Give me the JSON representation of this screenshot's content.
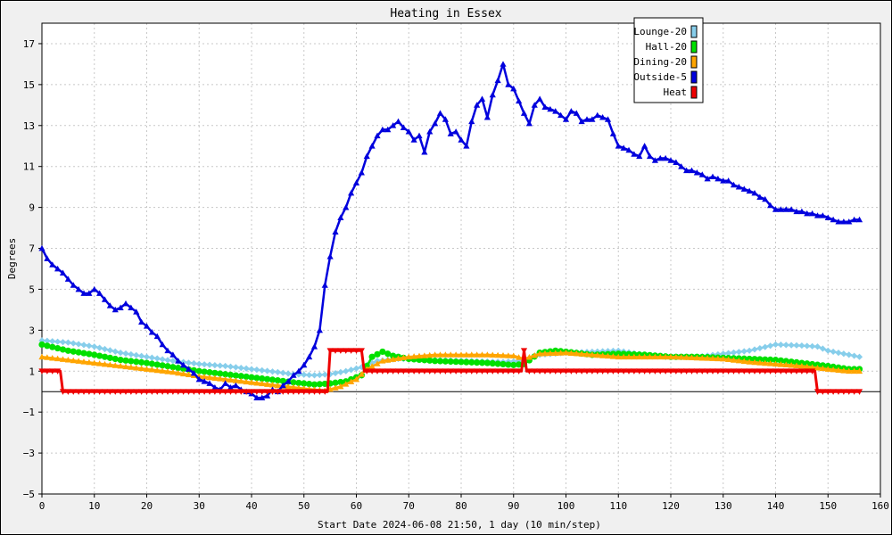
{
  "chart_data": {
    "type": "line",
    "title": "Heating in Essex",
    "xlabel": "Start Date 2024-06-08 21:50, 1 day (10 min/step)",
    "ylabel": "Degrees",
    "xlim": [
      0,
      160
    ],
    "ylim": [
      -5,
      18
    ],
    "xticks": [
      0,
      10,
      20,
      30,
      40,
      50,
      60,
      70,
      80,
      90,
      100,
      110,
      120,
      130,
      140,
      150,
      160
    ],
    "xtick_labels": [
      "0",
      "10",
      "20",
      "30",
      "40",
      "50",
      "60",
      "70",
      "80",
      "90",
      "100",
      "110",
      "120",
      "130",
      "140",
      "150",
      "160"
    ],
    "yticks": [
      -5,
      -3,
      -1,
      1,
      3,
      5,
      7,
      9,
      11,
      13,
      15,
      17
    ],
    "ytick_labels": [
      "−5",
      "−3",
      "−1",
      "1",
      "3",
      "5",
      "7",
      "9",
      "11",
      "13",
      "15",
      "17"
    ],
    "grid": true,
    "zero_line": true,
    "legend_position": "top-right",
    "series": [
      {
        "name": "Lounge-20",
        "color": "#87ceeb",
        "marker": "diamond",
        "points": [
          [
            0,
            2.5
          ],
          [
            5,
            2.4
          ],
          [
            10,
            2.2
          ],
          [
            15,
            1.9
          ],
          [
            20,
            1.7
          ],
          [
            25,
            1.5
          ],
          [
            30,
            1.35
          ],
          [
            35,
            1.25
          ],
          [
            40,
            1.1
          ],
          [
            45,
            0.95
          ],
          [
            48,
            0.85
          ],
          [
            52,
            0.8
          ],
          [
            55,
            0.85
          ],
          [
            58,
            1.0
          ],
          [
            61,
            1.2
          ],
          [
            64,
            1.5
          ],
          [
            68,
            1.6
          ],
          [
            75,
            1.55
          ],
          [
            82,
            1.5
          ],
          [
            88,
            1.45
          ],
          [
            92,
            1.5
          ],
          [
            95,
            1.8
          ],
          [
            100,
            1.9
          ],
          [
            105,
            1.95
          ],
          [
            110,
            2.0
          ],
          [
            115,
            1.8
          ],
          [
            120,
            1.7
          ],
          [
            125,
            1.7
          ],
          [
            130,
            1.85
          ],
          [
            135,
            2.0
          ],
          [
            140,
            2.3
          ],
          [
            145,
            2.25
          ],
          [
            148,
            2.2
          ],
          [
            150,
            2.0
          ],
          [
            154,
            1.8
          ],
          [
            156,
            1.7
          ]
        ]
      },
      {
        "name": "Hall-20",
        "color": "#00e000",
        "marker": "circle",
        "points": [
          [
            0,
            2.3
          ],
          [
            5,
            2.0
          ],
          [
            10,
            1.8
          ],
          [
            15,
            1.55
          ],
          [
            20,
            1.4
          ],
          [
            25,
            1.2
          ],
          [
            30,
            1.0
          ],
          [
            35,
            0.85
          ],
          [
            40,
            0.7
          ],
          [
            45,
            0.55
          ],
          [
            48,
            0.45
          ],
          [
            52,
            0.35
          ],
          [
            55,
            0.4
          ],
          [
            58,
            0.5
          ],
          [
            61,
            0.8
          ],
          [
            63,
            1.7
          ],
          [
            65,
            1.95
          ],
          [
            67,
            1.75
          ],
          [
            70,
            1.6
          ],
          [
            75,
            1.5
          ],
          [
            80,
            1.45
          ],
          [
            85,
            1.4
          ],
          [
            90,
            1.3
          ],
          [
            92,
            1.35
          ],
          [
            95,
            1.9
          ],
          [
            98,
            2.0
          ],
          [
            100,
            1.95
          ],
          [
            105,
            1.8
          ],
          [
            110,
            1.85
          ],
          [
            115,
            1.8
          ],
          [
            120,
            1.7
          ],
          [
            125,
            1.7
          ],
          [
            130,
            1.65
          ],
          [
            135,
            1.6
          ],
          [
            140,
            1.55
          ],
          [
            145,
            1.4
          ],
          [
            150,
            1.25
          ],
          [
            154,
            1.1
          ],
          [
            156,
            1.1
          ]
        ]
      },
      {
        "name": "Dining-20",
        "color": "#ffa500",
        "marker": "triangle",
        "points": [
          [
            0,
            1.7
          ],
          [
            5,
            1.55
          ],
          [
            10,
            1.4
          ],
          [
            15,
            1.25
          ],
          [
            20,
            1.1
          ],
          [
            25,
            0.95
          ],
          [
            30,
            0.75
          ],
          [
            35,
            0.6
          ],
          [
            40,
            0.45
          ],
          [
            45,
            0.3
          ],
          [
            50,
            0.15
          ],
          [
            54,
            0.05
          ],
          [
            57,
            0.25
          ],
          [
            60,
            0.6
          ],
          [
            62,
            1.1
          ],
          [
            65,
            1.5
          ],
          [
            70,
            1.7
          ],
          [
            75,
            1.8
          ],
          [
            80,
            1.8
          ],
          [
            85,
            1.8
          ],
          [
            90,
            1.75
          ],
          [
            92,
            1.6
          ],
          [
            95,
            1.85
          ],
          [
            100,
            1.9
          ],
          [
            105,
            1.8
          ],
          [
            110,
            1.7
          ],
          [
            115,
            1.7
          ],
          [
            120,
            1.7
          ],
          [
            125,
            1.65
          ],
          [
            130,
            1.6
          ],
          [
            135,
            1.45
          ],
          [
            140,
            1.35
          ],
          [
            145,
            1.25
          ],
          [
            150,
            1.1
          ],
          [
            154,
            1.0
          ],
          [
            156,
            1.0
          ]
        ]
      },
      {
        "name": "Outside-5",
        "color": "#0000dd",
        "marker": "triangle",
        "points": [
          [
            0,
            7.0
          ],
          [
            1,
            6.5
          ],
          [
            2,
            6.2
          ],
          [
            3,
            6.0
          ],
          [
            4,
            5.8
          ],
          [
            5,
            5.5
          ],
          [
            6,
            5.2
          ],
          [
            7,
            5.0
          ],
          [
            8,
            4.8
          ],
          [
            9,
            4.8
          ],
          [
            10,
            5.0
          ],
          [
            11,
            4.8
          ],
          [
            12,
            4.5
          ],
          [
            13,
            4.2
          ],
          [
            14,
            4.0
          ],
          [
            15,
            4.1
          ],
          [
            16,
            4.3
          ],
          [
            17,
            4.1
          ],
          [
            18,
            3.9
          ],
          [
            19,
            3.4
          ],
          [
            20,
            3.2
          ],
          [
            21,
            2.9
          ],
          [
            22,
            2.7
          ],
          [
            23,
            2.3
          ],
          [
            24,
            2.0
          ],
          [
            25,
            1.8
          ],
          [
            26,
            1.5
          ],
          [
            27,
            1.3
          ],
          [
            28,
            1.1
          ],
          [
            29,
            0.9
          ],
          [
            30,
            0.6
          ],
          [
            31,
            0.5
          ],
          [
            32,
            0.4
          ],
          [
            33,
            0.2
          ],
          [
            34,
            0.1
          ],
          [
            35,
            0.4
          ],
          [
            36,
            0.2
          ],
          [
            37,
            0.3
          ],
          [
            38,
            0.1
          ],
          [
            39,
            0.0
          ],
          [
            40,
            -0.1
          ],
          [
            41,
            -0.3
          ],
          [
            42,
            -0.3
          ],
          [
            43,
            -0.2
          ],
          [
            44,
            0.1
          ],
          [
            45,
            0.0
          ],
          [
            46,
            0.3
          ],
          [
            47,
            0.5
          ],
          [
            48,
            0.8
          ],
          [
            49,
            1.0
          ],
          [
            50,
            1.3
          ],
          [
            51,
            1.7
          ],
          [
            52,
            2.2
          ],
          [
            53,
            3.0
          ],
          [
            54,
            5.2
          ],
          [
            55,
            6.6
          ],
          [
            56,
            7.8
          ],
          [
            57,
            8.5
          ],
          [
            58,
            9.0
          ],
          [
            59,
            9.7
          ],
          [
            60,
            10.2
          ],
          [
            61,
            10.7
          ],
          [
            62,
            11.5
          ],
          [
            63,
            12.0
          ],
          [
            64,
            12.5
          ],
          [
            65,
            12.8
          ],
          [
            66,
            12.8
          ],
          [
            67,
            13.0
          ],
          [
            68,
            13.2
          ],
          [
            69,
            12.9
          ],
          [
            70,
            12.7
          ],
          [
            71,
            12.3
          ],
          [
            72,
            12.5
          ],
          [
            73,
            11.7
          ],
          [
            74,
            12.7
          ],
          [
            75,
            13.1
          ],
          [
            76,
            13.6
          ],
          [
            77,
            13.3
          ],
          [
            78,
            12.6
          ],
          [
            79,
            12.7
          ],
          [
            80,
            12.3
          ],
          [
            81,
            12.0
          ],
          [
            82,
            13.2
          ],
          [
            83,
            14.0
          ],
          [
            84,
            14.3
          ],
          [
            85,
            13.4
          ],
          [
            86,
            14.5
          ],
          [
            87,
            15.2
          ],
          [
            88,
            16.0
          ],
          [
            89,
            15.0
          ],
          [
            90,
            14.8
          ],
          [
            91,
            14.2
          ],
          [
            92,
            13.6
          ],
          [
            93,
            13.1
          ],
          [
            94,
            14.0
          ],
          [
            95,
            14.3
          ],
          [
            96,
            13.9
          ],
          [
            97,
            13.8
          ],
          [
            98,
            13.7
          ],
          [
            99,
            13.5
          ],
          [
            100,
            13.3
          ],
          [
            101,
            13.7
          ],
          [
            102,
            13.6
          ],
          [
            103,
            13.2
          ],
          [
            104,
            13.3
          ],
          [
            105,
            13.3
          ],
          [
            106,
            13.5
          ],
          [
            107,
            13.4
          ],
          [
            108,
            13.3
          ],
          [
            109,
            12.6
          ],
          [
            110,
            12.0
          ],
          [
            111,
            11.9
          ],
          [
            112,
            11.8
          ],
          [
            113,
            11.6
          ],
          [
            114,
            11.5
          ],
          [
            115,
            12.0
          ],
          [
            116,
            11.5
          ],
          [
            117,
            11.3
          ],
          [
            118,
            11.4
          ],
          [
            119,
            11.4
          ],
          [
            120,
            11.3
          ],
          [
            121,
            11.2
          ],
          [
            122,
            11.0
          ],
          [
            123,
            10.8
          ],
          [
            124,
            10.8
          ],
          [
            125,
            10.7
          ],
          [
            126,
            10.6
          ],
          [
            127,
            10.4
          ],
          [
            128,
            10.5
          ],
          [
            129,
            10.4
          ],
          [
            130,
            10.3
          ],
          [
            131,
            10.3
          ],
          [
            132,
            10.1
          ],
          [
            133,
            10.0
          ],
          [
            134,
            9.9
          ],
          [
            135,
            9.8
          ],
          [
            136,
            9.7
          ],
          [
            137,
            9.5
          ],
          [
            138,
            9.4
          ],
          [
            139,
            9.1
          ],
          [
            140,
            8.9
          ],
          [
            141,
            8.9
          ],
          [
            142,
            8.9
          ],
          [
            143,
            8.9
          ],
          [
            144,
            8.8
          ],
          [
            145,
            8.8
          ],
          [
            146,
            8.7
          ],
          [
            147,
            8.7
          ],
          [
            148,
            8.6
          ],
          [
            149,
            8.6
          ],
          [
            150,
            8.5
          ],
          [
            151,
            8.4
          ],
          [
            152,
            8.3
          ],
          [
            153,
            8.3
          ],
          [
            154,
            8.3
          ],
          [
            155,
            8.4
          ],
          [
            156,
            8.4
          ]
        ]
      },
      {
        "name": "Heat",
        "color": "#ee0000",
        "marker": "triangle-down",
        "points": [
          [
            0,
            1.0
          ],
          [
            3.5,
            1.0
          ],
          [
            4,
            0.0
          ],
          [
            54.5,
            0.0
          ],
          [
            55,
            2.0
          ],
          [
            61,
            2.0
          ],
          [
            61.5,
            1.0
          ],
          [
            91.5,
            1.0
          ],
          [
            92,
            2.0
          ],
          [
            92.5,
            1.0
          ],
          [
            147.5,
            1.0
          ],
          [
            148,
            0.0
          ],
          [
            156,
            0.0
          ]
        ]
      }
    ]
  }
}
